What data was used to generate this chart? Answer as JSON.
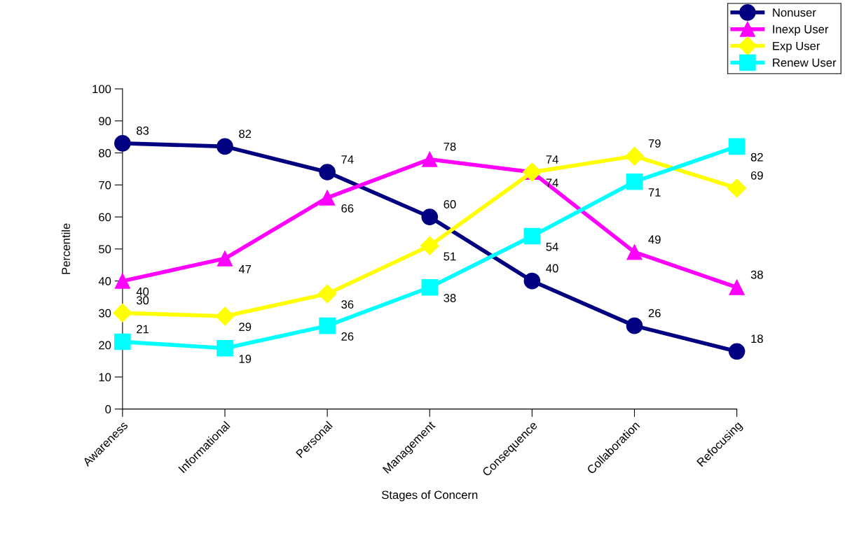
{
  "chart_data": {
    "type": "line",
    "xlabel": "Stages of Concern",
    "ylabel": "Percentile",
    "categories": [
      "Awareness",
      "Informational",
      "Personal",
      "Management",
      "Consequence",
      "Collaboration",
      "Refocusing"
    ],
    "series": [
      {
        "name": "Nonuser",
        "color": "#000080",
        "marker": "circle",
        "values": [
          83,
          82,
          74,
          60,
          40,
          26,
          18
        ]
      },
      {
        "name": "Inexp User",
        "color": "#ff00ff",
        "marker": "triangle",
        "values": [
          40,
          47,
          66,
          78,
          74,
          49,
          38
        ]
      },
      {
        "name": "Exp User",
        "color": "#ffff00",
        "marker": "diamond",
        "values": [
          30,
          29,
          36,
          51,
          74,
          79,
          69
        ]
      },
      {
        "name": "Renew User",
        "color": "#00ffff",
        "marker": "square",
        "values": [
          21,
          19,
          26,
          38,
          54,
          71,
          82
        ]
      }
    ],
    "ylim": [
      0,
      100
    ],
    "yticks": [
      0,
      10,
      20,
      30,
      40,
      50,
      60,
      70,
      80,
      90,
      100
    ],
    "grid": false,
    "legend": "top right",
    "data_labels": true,
    "line_style": "solid"
  }
}
